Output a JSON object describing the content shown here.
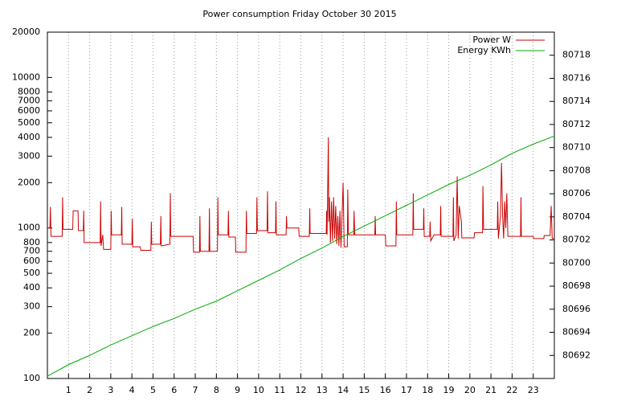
{
  "chart_data": {
    "type": "line",
    "title": "Power consumption Friday October 30 2015",
    "xlim": [
      0,
      24
    ],
    "xticks": [
      1,
      2,
      3,
      4,
      5,
      6,
      7,
      8,
      9,
      10,
      11,
      12,
      13,
      14,
      15,
      16,
      17,
      18,
      19,
      20,
      21,
      22,
      23
    ],
    "ylim": [
      100,
      20000
    ],
    "log_y": true,
    "yticks": [
      100,
      200,
      300,
      400,
      500,
      600,
      700,
      800,
      1000,
      2000,
      3000,
      4000,
      5000,
      6000,
      7000,
      8000,
      10000,
      20000
    ],
    "y2lim": [
      80690,
      80720
    ],
    "y2ticks": [
      80692,
      80694,
      80696,
      80698,
      80700,
      80702,
      80704,
      80706,
      80708,
      80710,
      80712,
      80714,
      80716,
      80718
    ],
    "grid": "x",
    "legend": "top-right",
    "series": [
      {
        "name": "Power W",
        "color": "#cc0000",
        "x": [
          0,
          0.12,
          0.14,
          0.17,
          0.7,
          0.72,
          0.74,
          1.2,
          1.22,
          1.45,
          1.47,
          1.7,
          1.72,
          1.74,
          2.5,
          2.52,
          2.54,
          2.62,
          2.66,
          3.0,
          3.02,
          3.04,
          3.5,
          3.52,
          3.54,
          4.0,
          4.02,
          4.04,
          4.4,
          4.42,
          4.9,
          4.92,
          4.94,
          5.35,
          5.37,
          5.39,
          5.8,
          5.82,
          5.84,
          6.9,
          6.92,
          7.2,
          7.22,
          7.24,
          7.65,
          7.67,
          7.69,
          8.05,
          8.07,
          8.09,
          8.55,
          8.57,
          8.59,
          8.9,
          8.92,
          9.4,
          9.42,
          9.44,
          9.9,
          9.92,
          9.94,
          10.4,
          10.42,
          10.44,
          10.8,
          10.82,
          10.84,
          11.3,
          11.32,
          11.34,
          11.9,
          11.92,
          12.4,
          12.42,
          12.44,
          13.2,
          13.22,
          13.24,
          13.28,
          13.3,
          13.32,
          13.35,
          13.4,
          13.45,
          13.5,
          13.55,
          13.6,
          13.65,
          13.7,
          13.75,
          13.8,
          13.85,
          13.9,
          14.0,
          14.05,
          14.2,
          14.22,
          14.25,
          14.5,
          14.52,
          14.55,
          15.5,
          15.52,
          15.54,
          16.0,
          16.02,
          16.5,
          16.52,
          16.54,
          17.3,
          17.32,
          17.34,
          17.8,
          17.82,
          17.84,
          18.1,
          18.12,
          18.15,
          18.3,
          18.6,
          18.62,
          18.64,
          19.2,
          19.22,
          19.24,
          19.35,
          19.4,
          19.45,
          19.5,
          19.6,
          19.62,
          20.2,
          20.22,
          20.6,
          20.62,
          20.65,
          21.3,
          21.32,
          21.35,
          21.45,
          21.5,
          21.55,
          21.6,
          21.65,
          21.7,
          21.75,
          21.8,
          22.4,
          22.42,
          22.44,
          23.0,
          23.02,
          23.5,
          23.52,
          23.8,
          23.85,
          23.9,
          24
        ],
        "values": [
          1000,
          1000,
          1380,
          880,
          880,
          1600,
          980,
          980,
          1300,
          1300,
          960,
          960,
          1300,
          800,
          800,
          1500,
          760,
          900,
          720,
          720,
          1300,
          900,
          900,
          1380,
          780,
          780,
          1150,
          750,
          750,
          710,
          710,
          1100,
          780,
          780,
          1200,
          760,
          780,
          1700,
          880,
          880,
          690,
          690,
          1200,
          700,
          700,
          1350,
          700,
          700,
          1600,
          900,
          900,
          1300,
          870,
          870,
          690,
          690,
          1300,
          920,
          920,
          1600,
          960,
          960,
          1750,
          930,
          930,
          1500,
          900,
          900,
          1200,
          1000,
          1000,
          880,
          880,
          1350,
          920,
          920,
          1300,
          900,
          2300,
          4000,
          1100,
          1600,
          800,
          1500,
          820,
          1600,
          850,
          1400,
          780,
          1200,
          760,
          1300,
          740,
          2000,
          750,
          750,
          1800,
          900,
          900,
          1300,
          900,
          900,
          1200,
          900,
          900,
          760,
          760,
          1500,
          900,
          900,
          1700,
          980,
          980,
          1350,
          880,
          880,
          1100,
          820,
          900,
          900,
          1400,
          880,
          880,
          1600,
          820,
          900,
          2200,
          850,
          1400,
          1100,
          860,
          860,
          930,
          930,
          1900,
          980,
          980,
          1500,
          850,
          1200,
          2700,
          1200,
          850,
          1500,
          1000,
          1700,
          880,
          880,
          1600,
          880,
          880,
          850,
          850,
          890,
          890,
          1400,
          850,
          850
        ]
      },
      {
        "name": "Energy KWh",
        "color": "#00aa00",
        "axis": "y2",
        "x": [
          0,
          1,
          2,
          3,
          4,
          5,
          6,
          7,
          8,
          9,
          10,
          11,
          12,
          13,
          14,
          15,
          16,
          17,
          18,
          19,
          20,
          21,
          22,
          23,
          24
        ],
        "values": [
          80690.2,
          80691.2,
          80692.0,
          80692.9,
          80693.7,
          80694.5,
          80695.2,
          80696.0,
          80696.7,
          80697.6,
          80698.5,
          80699.4,
          80700.4,
          80701.3,
          80702.3,
          80703.2,
          80704.1,
          80705.0,
          80705.9,
          80706.8,
          80707.6,
          80708.5,
          80709.5,
          80710.3,
          80711.0
        ]
      }
    ]
  }
}
